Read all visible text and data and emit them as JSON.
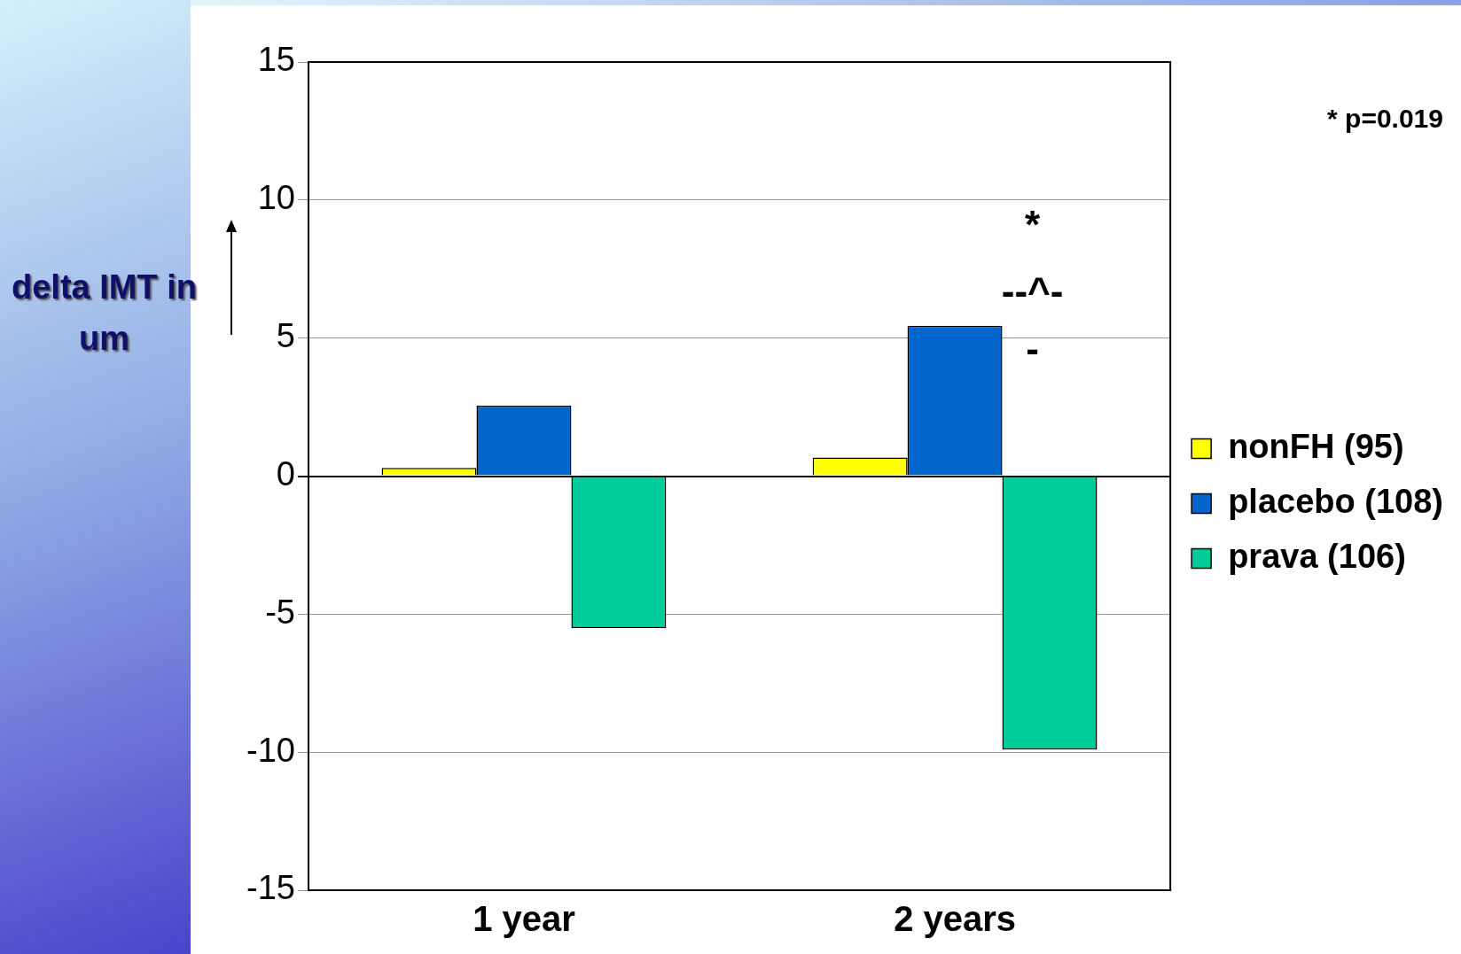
{
  "chart_data": {
    "type": "bar",
    "ylabel": "delta IMT in um",
    "categories": [
      "1 year",
      "2 years"
    ],
    "series": [
      {
        "name": "nonFH (95)",
        "color": "#ffff00",
        "values": [
          0.3,
          0.67
        ]
      },
      {
        "name": "placebo (108)",
        "color": "#0066cc",
        "values": [
          2.55,
          5.45
        ]
      },
      {
        "name": "prava (106)",
        "color": "#00cc99",
        "values": [
          -5.5,
          -9.9
        ]
      }
    ],
    "ylim": [
      -15,
      15
    ],
    "yticks": [
      -15,
      -10,
      -5,
      0,
      5,
      10,
      15
    ],
    "grid": "y",
    "legend": "right",
    "annotations": [
      "* p=0.019",
      "*",
      "--^-",
      "-"
    ]
  }
}
